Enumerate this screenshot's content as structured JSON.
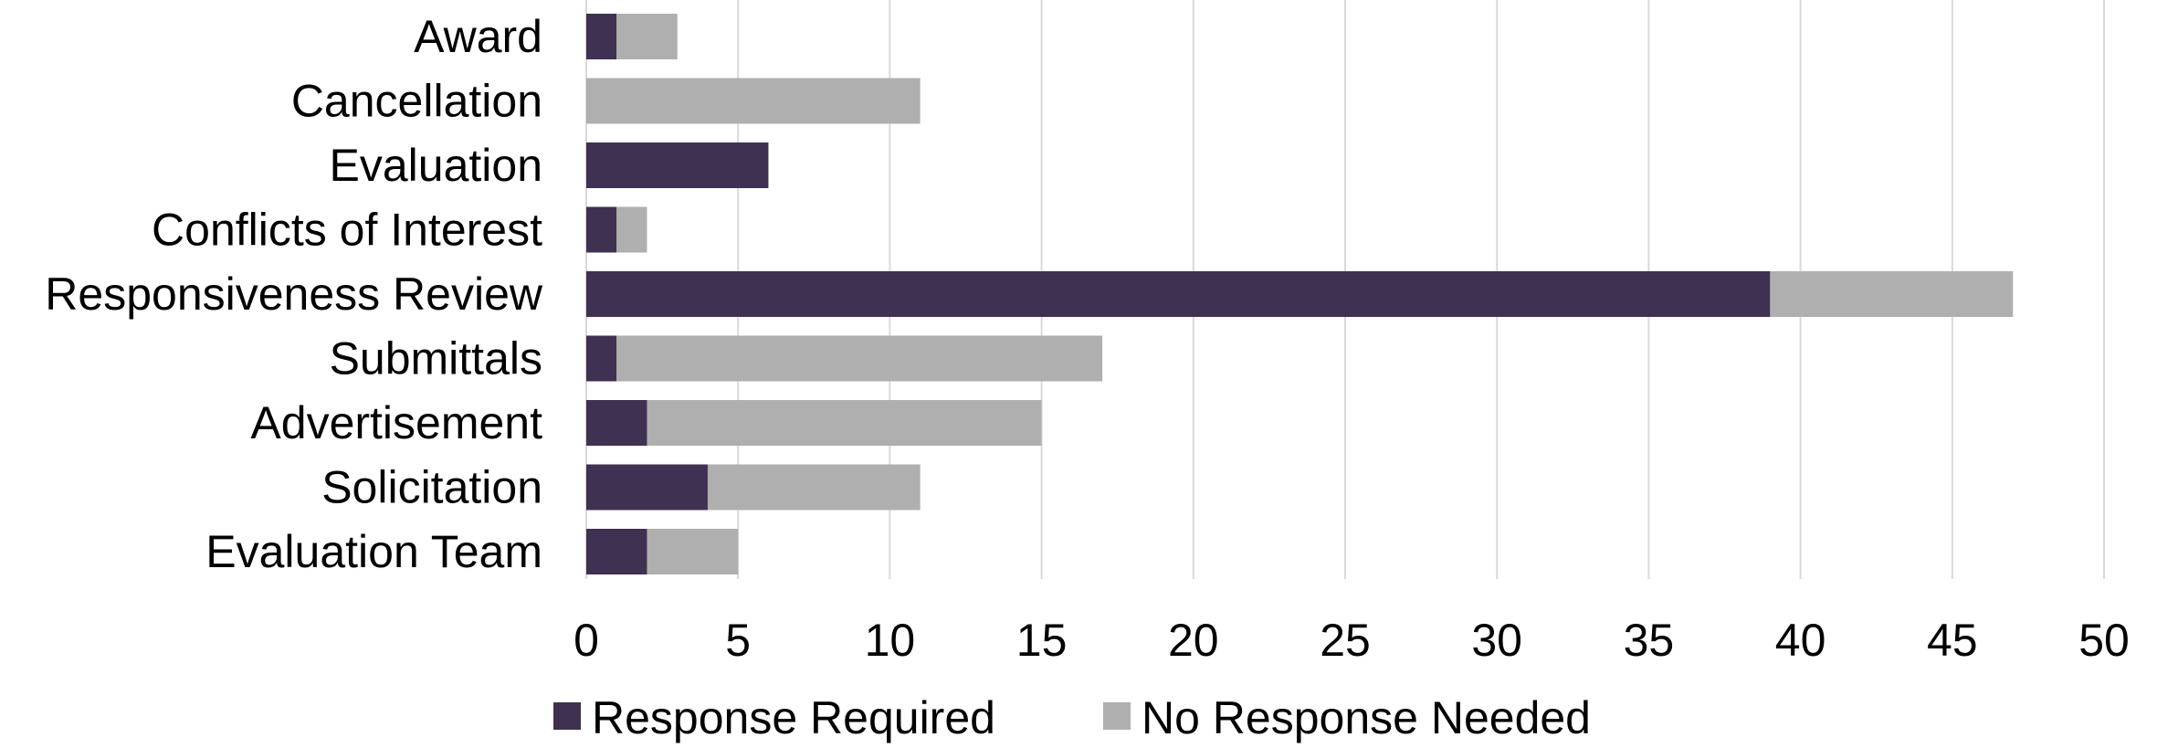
{
  "chart_data": {
    "type": "bar",
    "orientation": "horizontal",
    "stacked": true,
    "categories": [
      "Award",
      "Cancellation",
      "Evaluation",
      "Conflicts of Interest",
      "Responsiveness Review",
      "Submittals",
      "Advertisement",
      "Solicitation",
      "Evaluation Team"
    ],
    "series": [
      {
        "name": "Response Required",
        "color": "#3F3151",
        "values": [
          1,
          0,
          6,
          1,
          39,
          1,
          2,
          4,
          2
        ]
      },
      {
        "name": "No Response Needed",
        "color": "#AFAFAF",
        "values": [
          2,
          11,
          0,
          1,
          8,
          16,
          13,
          7,
          3
        ]
      }
    ],
    "xlim": [
      0,
      50
    ],
    "xticks": [
      "0",
      "5",
      "10",
      "15",
      "20",
      "25",
      "30",
      "35",
      "40",
      "45",
      "50"
    ],
    "grid": true,
    "gridlines": "vertical",
    "legend": "bottom-center",
    "title": "",
    "xlabel": "",
    "ylabel": ""
  }
}
